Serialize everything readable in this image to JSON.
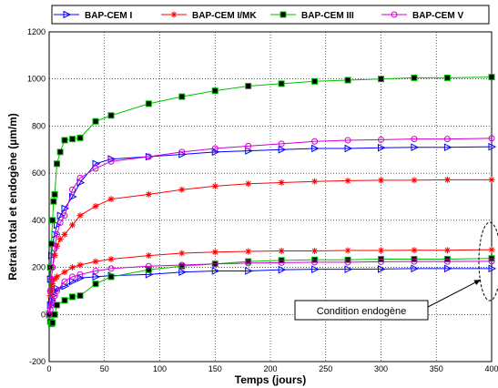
{
  "chart_data": {
    "type": "line",
    "title": "",
    "xlabel": "Temps (jours)",
    "ylabel": "Retrait total et endogène (µm/m)",
    "xlim": [
      0,
      400
    ],
    "ylim": [
      -200,
      1200
    ],
    "xticks": [
      0,
      50,
      100,
      150,
      200,
      250,
      300,
      350,
      400
    ],
    "yticks": [
      -200,
      0,
      200,
      400,
      600,
      800,
      1000,
      1200
    ],
    "grid": true,
    "legend_position": "top",
    "annotation": "Condition endogène",
    "series": [
      {
        "name": "BAP-CEM I",
        "color": "#0000ff",
        "marker": "triangle-right",
        "groups": [
          {
            "condition": "total",
            "points": [
              [
                0,
                0
              ],
              [
                1,
                150
              ],
              [
                2,
                250
              ],
              [
                3,
                300
              ],
              [
                5,
                340
              ],
              [
                7,
                380
              ],
              [
                10,
                420
              ],
              [
                14,
                450
              ],
              [
                21,
                500
              ],
              [
                28,
                560
              ],
              [
                42,
                640
              ],
              [
                56,
                660
              ],
              [
                90,
                670
              ],
              [
                120,
                680
              ],
              [
                150,
                690
              ],
              [
                180,
                695
              ],
              [
                210,
                700
              ],
              [
                240,
                705
              ],
              [
                270,
                705
              ],
              [
                300,
                708
              ],
              [
                330,
                710
              ],
              [
                360,
                710
              ],
              [
                400,
                712
              ]
            ]
          },
          {
            "condition": "endogène",
            "points": [
              [
                0,
                0
              ],
              [
                1,
                40
              ],
              [
                2,
                60
              ],
              [
                3,
                80
              ],
              [
                5,
                100
              ],
              [
                7,
                110
              ],
              [
                14,
                120
              ],
              [
                21,
                140
              ],
              [
                28,
                155
              ],
              [
                42,
                160
              ],
              [
                56,
                165
              ],
              [
                90,
                170
              ],
              [
                120,
                180
              ],
              [
                150,
                185
              ],
              [
                180,
                185
              ],
              [
                210,
                190
              ],
              [
                240,
                192
              ],
              [
                270,
                192
              ],
              [
                300,
                193
              ],
              [
                330,
                195
              ],
              [
                360,
                195
              ],
              [
                400,
                195
              ]
            ]
          }
        ]
      },
      {
        "name": "BAP-CEM I/MK",
        "color": "#ff0000",
        "marker": "asterisk",
        "groups": [
          {
            "condition": "total",
            "points": [
              [
                0,
                0
              ],
              [
                1,
                100
              ],
              [
                2,
                150
              ],
              [
                3,
                200
              ],
              [
                5,
                250
              ],
              [
                7,
                290
              ],
              [
                10,
                320
              ],
              [
                14,
                340
              ],
              [
                21,
                380
              ],
              [
                28,
                420
              ],
              [
                42,
                460
              ],
              [
                56,
                490
              ],
              [
                90,
                510
              ],
              [
                120,
                530
              ],
              [
                150,
                545
              ],
              [
                180,
                555
              ],
              [
                210,
                560
              ],
              [
                240,
                565
              ],
              [
                270,
                568
              ],
              [
                300,
                570
              ],
              [
                330,
                570
              ],
              [
                360,
                572
              ],
              [
                400,
                572
              ]
            ]
          },
          {
            "condition": "endogène",
            "points": [
              [
                0,
                0
              ],
              [
                1,
                80
              ],
              [
                2,
                110
              ],
              [
                3,
                130
              ],
              [
                5,
                150
              ],
              [
                7,
                160
              ],
              [
                14,
                180
              ],
              [
                21,
                200
              ],
              [
                28,
                210
              ],
              [
                42,
                225
              ],
              [
                56,
                235
              ],
              [
                90,
                250
              ],
              [
                120,
                260
              ],
              [
                150,
                265
              ],
              [
                180,
                268
              ],
              [
                210,
                270
              ],
              [
                240,
                270
              ],
              [
                270,
                272
              ],
              [
                300,
                272
              ],
              [
                330,
                273
              ],
              [
                360,
                273
              ],
              [
                400,
                275
              ]
            ]
          }
        ]
      },
      {
        "name": "BAP-CEM III",
        "color": "#00c000",
        "marker": "square",
        "groups": [
          {
            "condition": "total",
            "points": [
              [
                0,
                0
              ],
              [
                1,
                200
              ],
              [
                2,
                300
              ],
              [
                3,
                400
              ],
              [
                4,
                480
              ],
              [
                5,
                510
              ],
              [
                7,
                640
              ],
              [
                10,
                690
              ],
              [
                14,
                740
              ],
              [
                21,
                745
              ],
              [
                28,
                750
              ],
              [
                42,
                820
              ],
              [
                56,
                845
              ],
              [
                90,
                895
              ],
              [
                120,
                925
              ],
              [
                150,
                950
              ],
              [
                180,
                970
              ],
              [
                210,
                980
              ],
              [
                240,
                990
              ],
              [
                270,
                995
              ],
              [
                300,
                1000
              ],
              [
                330,
                1005
              ],
              [
                360,
                1005
              ],
              [
                400,
                1008
              ]
            ]
          },
          {
            "condition": "endogène",
            "points": [
              [
                0,
                0
              ],
              [
                1,
                -30
              ],
              [
                2,
                -40
              ],
              [
                3,
                -35
              ],
              [
                5,
                0
              ],
              [
                7,
                40
              ],
              [
                14,
                60
              ],
              [
                21,
                75
              ],
              [
                28,
                80
              ],
              [
                42,
                130
              ],
              [
                56,
                160
              ],
              [
                90,
                190
              ],
              [
                120,
                205
              ],
              [
                150,
                215
              ],
              [
                180,
                225
              ],
              [
                210,
                230
              ],
              [
                240,
                232
              ],
              [
                270,
                232
              ],
              [
                300,
                235
              ],
              [
                330,
                235
              ],
              [
                360,
                235
              ],
              [
                400,
                238
              ]
            ]
          }
        ]
      },
      {
        "name": "BAP-CEM V",
        "color": "#d000d0",
        "marker": "circle",
        "groups": [
          {
            "condition": "total",
            "points": [
              [
                0,
                0
              ],
              [
                1,
                100
              ],
              [
                2,
                150
              ],
              [
                3,
                200
              ],
              [
                5,
                280
              ],
              [
                7,
                340
              ],
              [
                10,
                390
              ],
              [
                14,
                420
              ],
              [
                21,
                530
              ],
              [
                28,
                580
              ],
              [
                42,
                620
              ],
              [
                56,
                650
              ],
              [
                90,
                670
              ],
              [
                120,
                690
              ],
              [
                150,
                705
              ],
              [
                180,
                715
              ],
              [
                210,
                725
              ],
              [
                240,
                735
              ],
              [
                270,
                740
              ],
              [
                300,
                742
              ],
              [
                330,
                745
              ],
              [
                360,
                745
              ],
              [
                400,
                748
              ]
            ]
          },
          {
            "condition": "endogène",
            "points": [
              [
                0,
                0
              ],
              [
                1,
                20
              ],
              [
                2,
                40
              ],
              [
                3,
                60
              ],
              [
                5,
                80
              ],
              [
                7,
                100
              ],
              [
                14,
                140
              ],
              [
                21,
                160
              ],
              [
                28,
                170
              ],
              [
                42,
                185
              ],
              [
                56,
                195
              ],
              [
                90,
                205
              ],
              [
                120,
                210
              ],
              [
                150,
                215
              ],
              [
                180,
                218
              ],
              [
                210,
                220
              ],
              [
                240,
                222
              ],
              [
                270,
                222
              ],
              [
                300,
                224
              ],
              [
                330,
                225
              ],
              [
                360,
                225
              ],
              [
                400,
                226
              ]
            ]
          }
        ]
      }
    ]
  }
}
